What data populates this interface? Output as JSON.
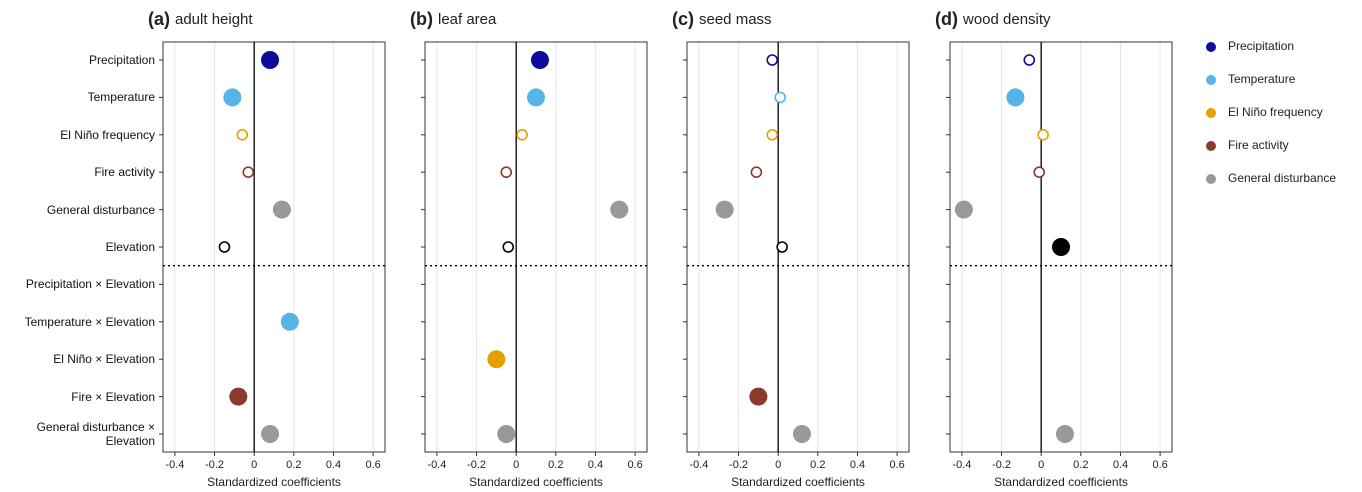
{
  "chart_data": [
    {
      "type": "dot",
      "label": "(a)",
      "title": "adult height",
      "xlabel": "Standardized coefficients",
      "categories": [
        "Precipitation",
        "Temperature",
        "El Niño frequency",
        "Fire activity",
        "General disturbance",
        "Elevation",
        "Precipitation × Elevation",
        "Temperature × Elevation",
        "El Niño × Elevation",
        "Fire × Elevation",
        "General disturbance ×\nElevation"
      ],
      "colors": [
        "#0d0d99",
        "#56b4e9",
        "#e69f00",
        "#8b3a2b",
        "#999999",
        "#000000",
        "#0d0d99",
        "#56b4e9",
        "#e69f00",
        "#8b3a2b",
        "#999999"
      ],
      "legend": [
        {
          "name": "Precipitation",
          "color": "#0d0d99"
        },
        {
          "name": "Temperature",
          "color": "#56b4e9"
        },
        {
          "name": "El Niño frequency",
          "color": "#e69f00"
        },
        {
          "name": "Fire activity",
          "color": "#8b3a2b"
        },
        {
          "name": "General disturbance",
          "color": "#999999"
        }
      ],
      "values": [
        0.08,
        -0.11,
        -0.06,
        -0.03,
        0.14,
        -0.15,
        null,
        0.18,
        null,
        -0.08,
        0.08
      ],
      "filled": [
        true,
        true,
        false,
        false,
        true,
        false,
        null,
        true,
        null,
        true,
        true
      ],
      "xlim": [
        -0.46,
        0.66
      ],
      "xticks": [
        -0.4,
        -0.2,
        0,
        0.2,
        0.4,
        0.6
      ],
      "grid": true
    },
    {
      "type": "dot",
      "label": "(b)",
      "title": "leaf area",
      "xlabel": "Standardized coefficients",
      "values": [
        0.12,
        0.1,
        0.03,
        -0.05,
        0.52,
        -0.04,
        null,
        null,
        -0.1,
        null,
        -0.05
      ],
      "filled": [
        true,
        true,
        false,
        false,
        true,
        false,
        null,
        null,
        true,
        null,
        true
      ],
      "xlim": [
        -0.46,
        0.66
      ],
      "xticks": [
        -0.4,
        -0.2,
        0,
        0.2,
        0.4,
        0.6
      ],
      "grid": true
    },
    {
      "type": "dot",
      "label": "(c)",
      "title": "seed mass",
      "xlabel": "Standardized coefficients",
      "values": [
        -0.03,
        0.01,
        -0.03,
        -0.11,
        -0.27,
        0.02,
        null,
        null,
        null,
        -0.1,
        0.12
      ],
      "filled": [
        false,
        false,
        false,
        false,
        true,
        false,
        null,
        null,
        null,
        true,
        true
      ],
      "xlim": [
        -0.46,
        0.66
      ],
      "xticks": [
        -0.4,
        -0.2,
        0,
        0.2,
        0.4,
        0.6
      ],
      "grid": true
    },
    {
      "type": "dot",
      "label": "(d)",
      "title": "wood density",
      "xlabel": "Standardized coefficients",
      "values": [
        -0.06,
        -0.13,
        0.01,
        -0.01,
        -0.39,
        0.1,
        null,
        null,
        null,
        null,
        0.12
      ],
      "filled": [
        false,
        true,
        false,
        false,
        true,
        true,
        null,
        null,
        null,
        null,
        true
      ],
      "xlim": [
        -0.46,
        0.66
      ],
      "xticks": [
        -0.4,
        -0.2,
        0,
        0.2,
        0.4,
        0.6
      ],
      "grid": true
    }
  ]
}
